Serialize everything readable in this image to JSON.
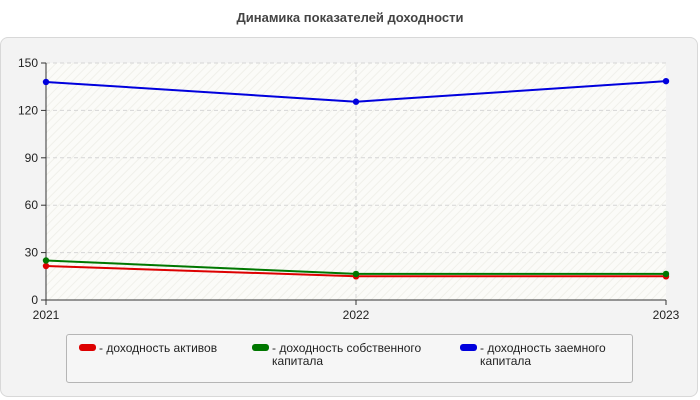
{
  "chart_data": {
    "type": "line",
    "title": "Динамика показателей доходности",
    "x": [
      "2021",
      "2022",
      "2023"
    ],
    "ylim": [
      0,
      150
    ],
    "yticks": [
      0,
      30,
      60,
      90,
      120,
      150
    ],
    "grid": true,
    "legend_position": "bottom",
    "series": [
      {
        "name": "- доходность активов",
        "color": "#dd0000",
        "values": [
          21.5,
          15,
          15
        ]
      },
      {
        "name": "- доходность собственного капитала",
        "color": "#007700",
        "values": [
          25,
          16.5,
          16.5
        ]
      },
      {
        "name": "- доходность заемного капитала",
        "color": "#0000dd",
        "values": [
          138,
          125.5,
          138.5
        ]
      }
    ]
  }
}
